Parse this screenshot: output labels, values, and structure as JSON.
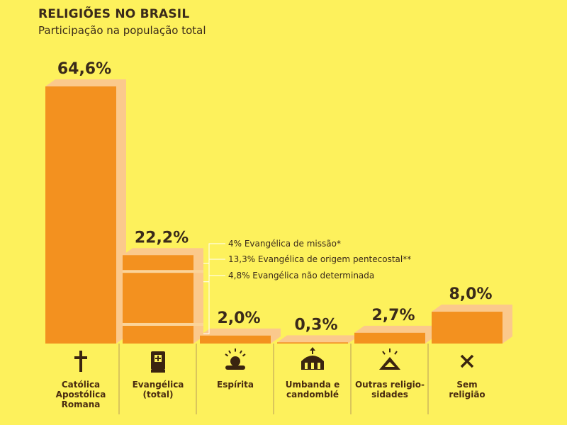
{
  "chart_data": {
    "type": "bar",
    "title": "RELIGIÕES NO BRASIL",
    "subtitle": "Participação na população total",
    "categories": [
      {
        "lines": [
          "Católica",
          "Apostólica",
          "Romana"
        ],
        "icon": "cross-icon"
      },
      {
        "lines": [
          "Evangélica",
          "(total)"
        ],
        "icon": "bible-icon"
      },
      {
        "lines": [
          "Espírita"
        ],
        "icon": "radiant-figure-icon"
      },
      {
        "lines": [
          "Umbanda e",
          "candomblé"
        ],
        "icon": "temple-icon"
      },
      {
        "lines": [
          "Outras religio-",
          "sidades"
        ],
        "icon": "radiant-triangle-icon"
      },
      {
        "lines": [
          "Sem",
          "religião"
        ],
        "icon": "x-icon"
      }
    ],
    "values": [
      64.6,
      22.2,
      2.0,
      0.3,
      2.7,
      8.0
    ],
    "value_labels": [
      "64,6%",
      "22,2%",
      "2,0%",
      "0,3%",
      "2,7%",
      "8,0%"
    ],
    "ylim": [
      0,
      70
    ],
    "evangelical_breakdown": [
      {
        "value": 4.0,
        "label": "4% Evangélica de missão*"
      },
      {
        "value": 13.3,
        "label": "13,3% Evangélica de origem pentecostal**"
      },
      {
        "value": 4.8,
        "label": "4,8% Evangélica não determinada"
      }
    ],
    "colors": {
      "bar": "#f3911f",
      "bar_shadow": "#fbc98c",
      "background": "#fdf15c",
      "divider": "#fbd49a",
      "text": "#3a2a1a"
    }
  }
}
